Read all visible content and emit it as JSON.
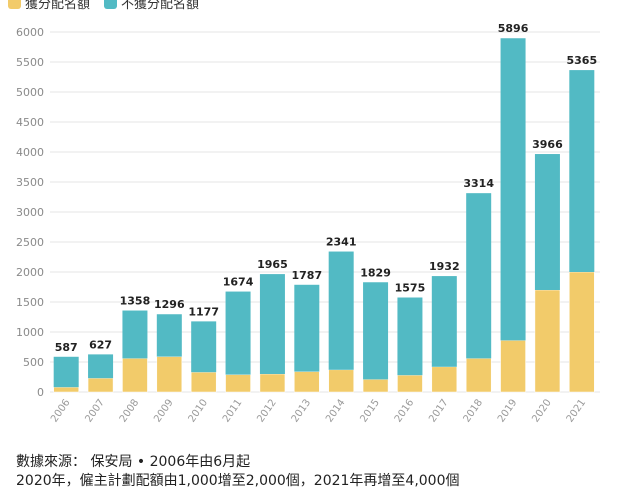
{
  "legend": {
    "items": [
      {
        "label": "獲分配名額",
        "color": "#F2CB6A"
      },
      {
        "label": "不獲分配名額",
        "color": "#52BAC4"
      }
    ]
  },
  "footer": {
    "source": "數據來源： 保安局 • 2006年由6月起",
    "note": "2020年，僱主計劃配額由1,000增至2,000個，2021年再增至4,000個"
  },
  "chart_data": {
    "type": "bar",
    "stacked": true,
    "categories": [
      "2006",
      "2007",
      "2008",
      "2009",
      "2010",
      "2011",
      "2012",
      "2013",
      "2014",
      "2015",
      "2016",
      "2017",
      "2018",
      "2019",
      "2020",
      "2021"
    ],
    "series": [
      {
        "name": "獲分配名額",
        "color": "#F2CB6A",
        "values": [
          80,
          230,
          560,
          590,
          330,
          290,
          300,
          340,
          370,
          210,
          280,
          420,
          560,
          860,
          1700,
          2000
        ]
      },
      {
        "name": "不獲分配名額",
        "color": "#52BAC4",
        "values": [
          507,
          397,
          798,
          706,
          847,
          1384,
          1665,
          1447,
          1971,
          1619,
          1295,
          1512,
          2754,
          5036,
          2266,
          3365
        ]
      }
    ],
    "totals": [
      587,
      627,
      1358,
      1296,
      1177,
      1674,
      1965,
      1787,
      2341,
      1829,
      1575,
      1932,
      3314,
      5896,
      3966,
      5365
    ],
    "yticks": [
      0,
      500,
      1000,
      1500,
      2000,
      2500,
      3000,
      3500,
      4000,
      4500,
      5000,
      5500,
      6000
    ],
    "ylim": [
      0,
      6000
    ],
    "grid": true,
    "legend_position": "top-left",
    "title": "",
    "xlabel": "",
    "ylabel": ""
  }
}
